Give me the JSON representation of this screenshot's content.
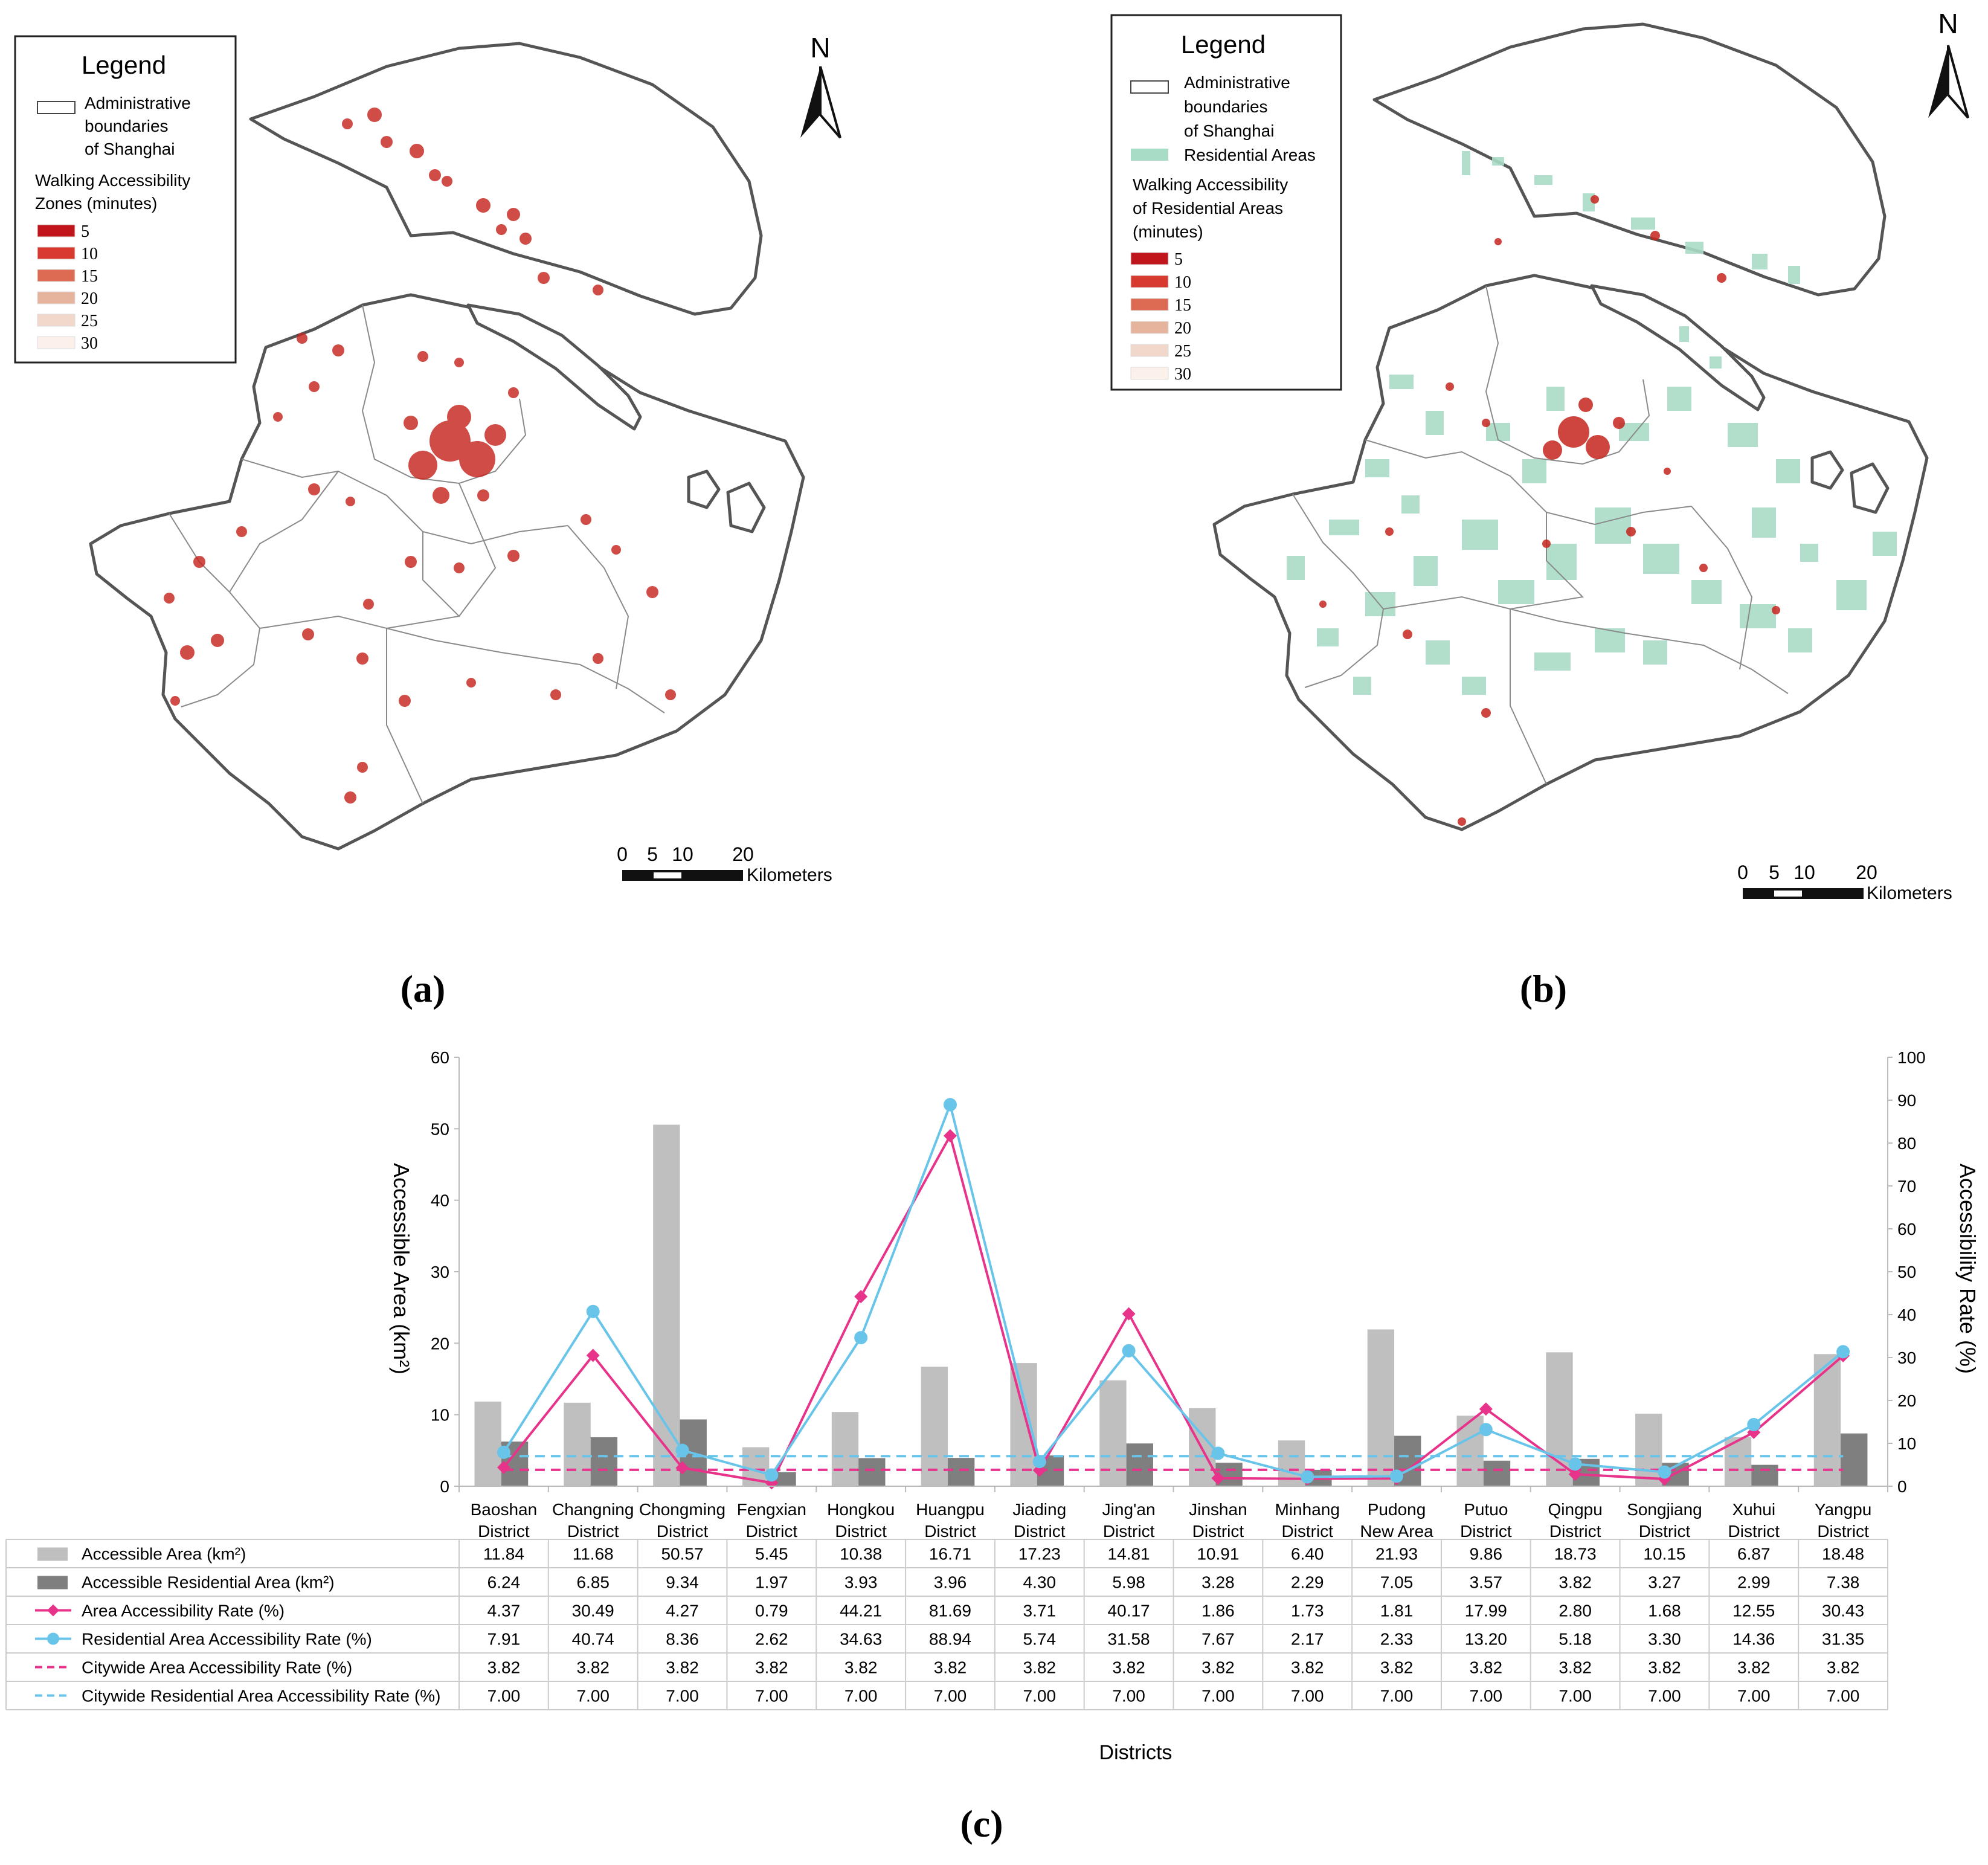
{
  "panel_a": {
    "label": "(a)",
    "legend": {
      "title": "Legend",
      "boundary_label": [
        "Administrative",
        "boundaries",
        "of Shanghai"
      ],
      "zones_title": [
        "Walking Accessibility",
        "Zones (minutes)"
      ],
      "classes": [
        {
          "value": "5",
          "color": "#c0161b"
        },
        {
          "value": "10",
          "color": "#d83a30"
        },
        {
          "value": "15",
          "color": "#dd6a52"
        },
        {
          "value": "20",
          "color": "#e6b49d"
        },
        {
          "value": "25",
          "color": "#f1d8ca"
        },
        {
          "value": "30",
          "color": "#fbf1ea"
        }
      ]
    },
    "north": "N",
    "scale": {
      "ticks": [
        "0",
        "5",
        "10",
        "20"
      ],
      "unit": "Kilometers"
    }
  },
  "panel_b": {
    "label": "(b)",
    "legend": {
      "title": "Legend",
      "boundary_label": [
        "Administrative",
        "boundaries",
        "of Shanghai"
      ],
      "residential_label": "Residential Areas",
      "residential_color": "#a9dcc6",
      "zones_title": [
        "Walking Accessibility",
        "of Residential Areas",
        "(minutes)"
      ],
      "classes": [
        {
          "value": "5",
          "color": "#c0161b"
        },
        {
          "value": "10",
          "color": "#d83a30"
        },
        {
          "value": "15",
          "color": "#dd6a52"
        },
        {
          "value": "20",
          "color": "#e6b49d"
        },
        {
          "value": "25",
          "color": "#f1d8ca"
        },
        {
          "value": "30",
          "color": "#fbf1ea"
        }
      ]
    },
    "north": "N",
    "scale": {
      "ticks": [
        "0",
        "5",
        "10",
        "20"
      ],
      "unit": "Kilometers"
    }
  },
  "panel_c": {
    "label": "(c)"
  },
  "chart_data": {
    "type": "bar",
    "categories": [
      [
        "Baoshan",
        "District"
      ],
      [
        "Changning",
        "District"
      ],
      [
        "Chongming",
        "District"
      ],
      [
        "Fengxian",
        "District"
      ],
      [
        "Hongkou",
        "District"
      ],
      [
        "Huangpu",
        "District"
      ],
      [
        "Jiading",
        "District"
      ],
      [
        "Jing'an",
        "District"
      ],
      [
        "Jinshan",
        "District"
      ],
      [
        "Minhang",
        "District"
      ],
      [
        "Pudong",
        "New Area"
      ],
      [
        "Putuo",
        "District"
      ],
      [
        "Qingpu",
        "District"
      ],
      [
        "Songjiang",
        "District"
      ],
      [
        "Xuhui",
        "District"
      ],
      [
        "Yangpu",
        "District"
      ]
    ],
    "xlabel": "Districts",
    "ylabel": "Accessible Area (km²)",
    "y2label": "Accessibility Rate (%)",
    "ylim": [
      0,
      60
    ],
    "y2lim": [
      0,
      100
    ],
    "yticks": [
      0,
      10,
      20,
      30,
      40,
      50,
      60
    ],
    "y2ticks": [
      0,
      10,
      20,
      30,
      40,
      50,
      60,
      70,
      80,
      90,
      100
    ],
    "series": [
      {
        "name": "Accessible Area (km²)",
        "kind": "bar",
        "axis": "left",
        "color": "#bfbfbf",
        "values": [
          11.84,
          11.68,
          50.57,
          5.45,
          10.38,
          16.71,
          17.23,
          14.81,
          10.91,
          6.4,
          21.93,
          9.86,
          18.73,
          10.15,
          6.87,
          18.48
        ],
        "display": [
          "11.84",
          "11.68",
          "50.57",
          "5.45",
          "10.38",
          "16.71",
          "17.23",
          "14.81",
          "10.91",
          "6.40",
          "21.93",
          "9.86",
          "18.73",
          "10.15",
          "6.87",
          "18.48"
        ]
      },
      {
        "name": "Accessible Residential Area (km²)",
        "kind": "bar",
        "axis": "left",
        "color": "#7f7f7f",
        "values": [
          6.24,
          6.85,
          9.34,
          1.97,
          3.93,
          3.96,
          4.3,
          5.98,
          3.28,
          2.29,
          7.05,
          3.57,
          3.82,
          3.27,
          2.99,
          7.38
        ],
        "display": [
          "6.24",
          "6.85",
          "9.34",
          "1.97",
          "3.93",
          "3.96",
          "4.30",
          "5.98",
          "3.28",
          "2.29",
          "7.05",
          "3.57",
          "3.82",
          "3.27",
          "2.99",
          "7.38"
        ]
      },
      {
        "name": "Area Accessibility Rate (%)",
        "kind": "line",
        "marker": "diamond",
        "axis": "right",
        "color": "#e8338b",
        "values": [
          4.37,
          30.49,
          4.27,
          0.79,
          44.21,
          81.69,
          3.71,
          40.17,
          1.86,
          1.73,
          1.81,
          17.99,
          2.8,
          1.68,
          12.55,
          30.43
        ],
        "display": [
          "4.37",
          "30.49",
          "4.27",
          "0.79",
          "44.21",
          "81.69",
          "3.71",
          "40.17",
          "1.86",
          "1.73",
          "1.81",
          "17.99",
          "2.80",
          "1.68",
          "12.55",
          "30.43"
        ]
      },
      {
        "name": "Residential Area Accessibility Rate (%)",
        "kind": "line",
        "marker": "circle",
        "axis": "right",
        "color": "#69c4ea",
        "values": [
          7.91,
          40.74,
          8.36,
          2.62,
          34.63,
          88.94,
          5.74,
          31.58,
          7.67,
          2.17,
          2.33,
          13.2,
          5.18,
          3.3,
          14.36,
          31.35
        ],
        "display": [
          "7.91",
          "40.74",
          "8.36",
          "2.62",
          "34.63",
          "88.94",
          "5.74",
          "31.58",
          "7.67",
          "2.17",
          "2.33",
          "13.20",
          "5.18",
          "3.30",
          "14.36",
          "31.35"
        ]
      },
      {
        "name": "Citywide Area Accessibility Rate (%)",
        "kind": "dashed",
        "axis": "right",
        "color": "#e8338b",
        "values": [
          3.82,
          3.82,
          3.82,
          3.82,
          3.82,
          3.82,
          3.82,
          3.82,
          3.82,
          3.82,
          3.82,
          3.82,
          3.82,
          3.82,
          3.82,
          3.82
        ],
        "display": [
          "3.82",
          "3.82",
          "3.82",
          "3.82",
          "3.82",
          "3.82",
          "3.82",
          "3.82",
          "3.82",
          "3.82",
          "3.82",
          "3.82",
          "3.82",
          "3.82",
          "3.82",
          "3.82"
        ]
      },
      {
        "name": "Citywide Residential Area Accessibility Rate (%)",
        "kind": "dashed",
        "axis": "right",
        "color": "#69c4ea",
        "values": [
          7.0,
          7.0,
          7.0,
          7.0,
          7.0,
          7.0,
          7.0,
          7.0,
          7.0,
          7.0,
          7.0,
          7.0,
          7.0,
          7.0,
          7.0,
          7.0
        ],
        "display": [
          "7.00",
          "7.00",
          "7.00",
          "7.00",
          "7.00",
          "7.00",
          "7.00",
          "7.00",
          "7.00",
          "7.00",
          "7.00",
          "7.00",
          "7.00",
          "7.00",
          "7.00",
          "7.00"
        ]
      }
    ]
  }
}
